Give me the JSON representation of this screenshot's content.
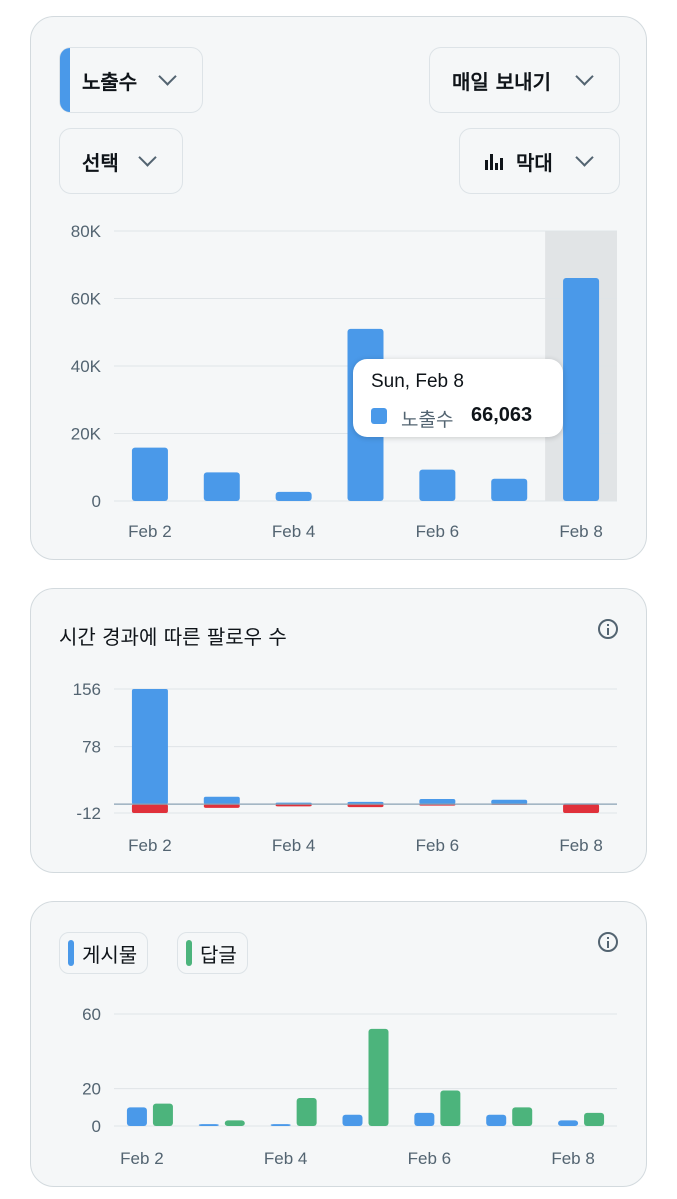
{
  "top_card": {
    "metric_dropdown": {
      "label": "노출수"
    },
    "frequency_dropdown": {
      "label": "매일 보내기"
    },
    "select_dropdown": {
      "label": "선택"
    },
    "chart_type_dropdown": {
      "label": "막대",
      "icon": "bar-chart-icon"
    },
    "tooltip": {
      "date": "Sun, Feb 8",
      "series": "노출수",
      "value": "66,063"
    }
  },
  "followers_card": {
    "title": "시간 경과에 따른 팔로우 수",
    "icon": "info-icon"
  },
  "posts_card": {
    "legend": [
      {
        "label": "게시물",
        "color": "#4a99e9"
      },
      {
        "label": "답글",
        "color": "#4cb47c"
      }
    ],
    "icon": "info-icon"
  },
  "colors": {
    "blue": "#4a99e9",
    "green": "#4cb47c",
    "red": "#e0313b",
    "highlight": "#e1e4e6"
  },
  "chart_data": [
    {
      "type": "bar",
      "categories": [
        "Feb 2",
        "Feb 3",
        "Feb 4",
        "Feb 5",
        "Feb 6",
        "Feb 7",
        "Feb 8"
      ],
      "tick_labels": [
        "Feb 2",
        "Feb 4",
        "Feb 6",
        "Feb 8"
      ],
      "y_ticks": [
        "80K",
        "60K",
        "40K",
        "20K",
        "0"
      ],
      "series": [
        {
          "name": "노출수",
          "values": [
            15800,
            8500,
            2700,
            51000,
            9300,
            6600,
            66063
          ]
        }
      ],
      "ylim": [
        0,
        80000
      ],
      "highlighted": "Feb 8",
      "grid": true
    },
    {
      "type": "bar",
      "categories": [
        "Feb 2",
        "Feb 3",
        "Feb 4",
        "Feb 5",
        "Feb 6",
        "Feb 7",
        "Feb 8"
      ],
      "tick_labels": [
        "Feb 2",
        "Feb 4",
        "Feb 6",
        "Feb 8"
      ],
      "y_ticks": [
        "156",
        "78",
        "-12"
      ],
      "series": [
        {
          "values": [
            156,
            10,
            2,
            3,
            7,
            6,
            1
          ]
        },
        {
          "values": [
            -12,
            -5,
            -3,
            -4,
            -2,
            -1,
            -12
          ]
        }
      ],
      "ylim": [
        -12,
        156
      ],
      "grid": true
    },
    {
      "type": "bar",
      "categories": [
        "Feb 2",
        "Feb 3",
        "Feb 4",
        "Feb 5",
        "Feb 6",
        "Feb 7",
        "Feb 8"
      ],
      "tick_labels": [
        "Feb 2",
        "Feb 4",
        "Feb 6",
        "Feb 8"
      ],
      "y_ticks": [
        "60",
        "20",
        "0"
      ],
      "series": [
        {
          "name": "게시물",
          "values": [
            10,
            1,
            1,
            6,
            7,
            6,
            3
          ]
        },
        {
          "name": "답글",
          "values": [
            12,
            3,
            15,
            52,
            19,
            10,
            7
          ]
        }
      ],
      "ylim": [
        0,
        60
      ],
      "grid": true
    }
  ]
}
